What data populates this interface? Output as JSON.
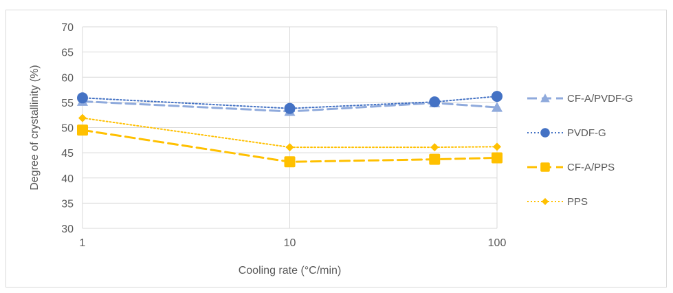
{
  "chart_data": {
    "type": "line",
    "x_scale": "log",
    "x": [
      1,
      10,
      50,
      100
    ],
    "x_ticks": [
      "1",
      "10",
      "100"
    ],
    "y_ticks": [
      "30",
      "35",
      "40",
      "45",
      "50",
      "55",
      "60",
      "65",
      "70"
    ],
    "ylim": [
      30,
      70
    ],
    "xlim": [
      1,
      100
    ],
    "xlabel": "Cooling rate (°C/min)",
    "ylabel": "Degree of crystallinity (%)",
    "grid": true,
    "legend_position": "right",
    "series": [
      {
        "name": "CF-A/PVDF-G",
        "values": [
          55.2,
          53.2,
          54.9,
          54.0
        ],
        "color": "#8faadc",
        "dash": "long-dash",
        "marker": "triangle"
      },
      {
        "name": "PVDF-G",
        "values": [
          55.9,
          53.8,
          55.1,
          56.2
        ],
        "color": "#4472c4",
        "dash": "dot",
        "marker": "circle"
      },
      {
        "name": "CF-A/PPS",
        "values": [
          49.5,
          43.2,
          43.7,
          44.0
        ],
        "color": "#ffc000",
        "dash": "long-dash",
        "marker": "square"
      },
      {
        "name": "PPS",
        "values": [
          51.9,
          46.1,
          46.1,
          46.2
        ],
        "color": "#ffc000",
        "dash": "dot",
        "marker": "diamond"
      }
    ]
  }
}
